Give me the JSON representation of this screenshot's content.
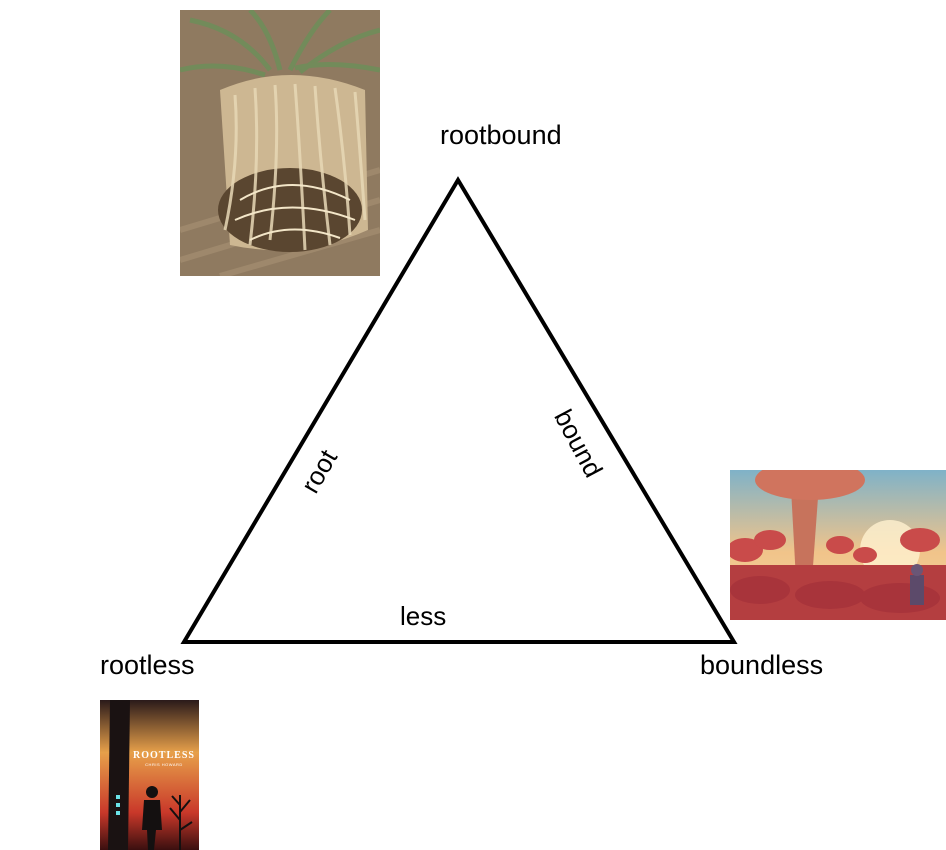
{
  "vertices": {
    "top": "rootbound",
    "left": "rootless",
    "right": "boundless"
  },
  "edges": {
    "left": "root",
    "right": "bound",
    "bottom": "less"
  },
  "images": {
    "rootbound": {
      "subject": "rootbound plant root ball"
    },
    "boundless": {
      "subject": "alien landscape with red trees"
    },
    "rootless": {
      "subject": "book cover",
      "cover_title": "ROOTLESS",
      "cover_author": "CHRIS HOWARD"
    }
  },
  "colors": {
    "line": "#000000",
    "background": "#ffffff"
  }
}
